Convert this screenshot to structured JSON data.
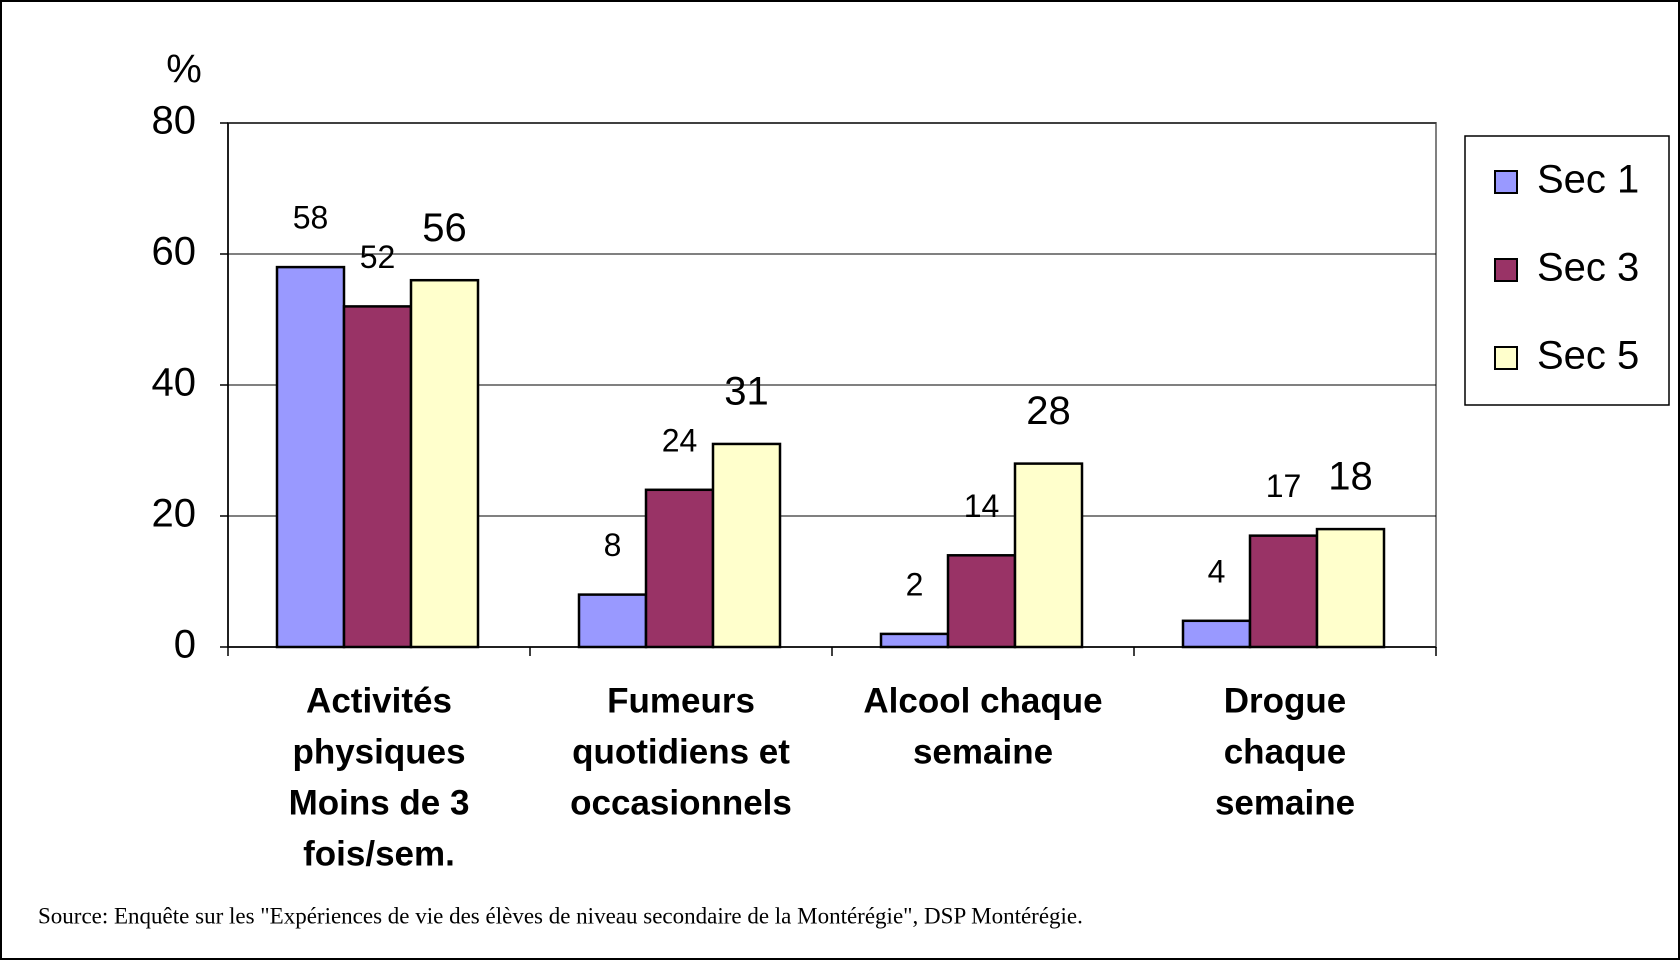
{
  "chart_data": {
    "type": "bar",
    "y_axis_label": "%",
    "categories": [
      [
        "Activités",
        "physiques",
        "Moins de  3",
        "fois/sem."
      ],
      [
        "Fumeurs",
        "quotidiens et",
        "occasionnels"
      ],
      [
        "Alcool chaque",
        "semaine"
      ],
      [
        "Drogue",
        "chaque",
        "semaine"
      ]
    ],
    "series": [
      {
        "name": "Sec 1",
        "color": "#9999ff",
        "values": [
          58,
          8,
          2,
          4
        ]
      },
      {
        "name": "Sec 3",
        "color": "#993366",
        "values": [
          52,
          24,
          14,
          17
        ]
      },
      {
        "name": "Sec 5",
        "color": "#ffffcc",
        "values": [
          56,
          31,
          28,
          18
        ]
      }
    ],
    "ylim": [
      0,
      80
    ],
    "yticks": [
      0,
      20,
      40,
      60,
      80
    ],
    "grid": true,
    "legend": "right",
    "source": "Source: Enquête sur les \"Expériences de vie des élèves de niveau secondaire de la Montérégie\", DSP Montérégie."
  }
}
